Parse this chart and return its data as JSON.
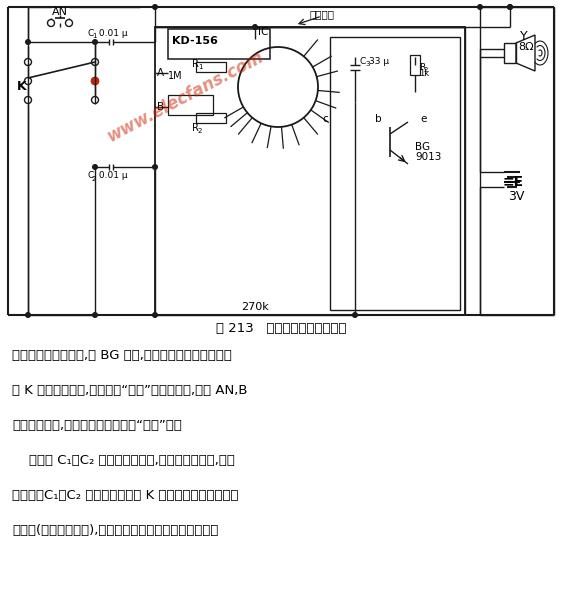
{
  "title": "图 213   集成电路音乐门铃电路",
  "bg_color": "#ffffff",
  "line_color": "#1a1a1a",
  "watermark": "www.elecfans.com",
  "watermark_color": "#cc2200",
  "text_line1": "输出内贮的鸟鸣信号,经 BG 放大,推动扬声器发出声响。如",
  "text_line2": "将 K 拨向另一位置,线路即为“叮咚”门铃。此时,按下 AN,B",
  "text_line3": "端得到负脉冲,扬声器就发出清脆的“叮咚”声。",
  "text_line4": "    线路中 C₁、C₂ 瓷片电容的作用,是为了滤掉干扰,避免",
  "text_line5": "误触发。C₁、C₂ 可直接焊在开关 K 上。印刷线路板上的少",
  "text_line6": "许改动(图中的划开处),是为了提高音量、降低静态功耗。"
}
